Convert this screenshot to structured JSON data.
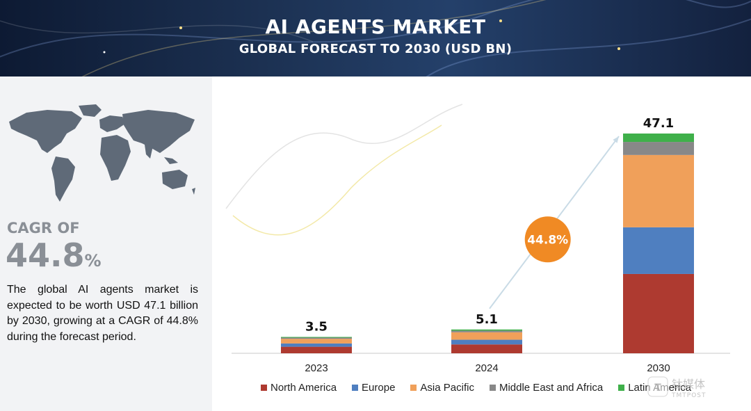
{
  "header": {
    "title": "AI AGENTS MARKET",
    "subtitle": "GLOBAL FORECAST TO 2030 (USD BN)"
  },
  "sidebar": {
    "cagr_label": "CAGR OF",
    "cagr_value": "44.8",
    "cagr_unit": "%",
    "description": "The global AI agents market is expected to be worth USD 47.1 billion by 2030, growing at a CAGR of 44.8% during the forecast period."
  },
  "chart_data": {
    "type": "bar",
    "stacked": true,
    "categories": [
      "2023",
      "2024",
      "2030"
    ],
    "totals": [
      "3.5",
      "5.1",
      "47.1"
    ],
    "series": [
      {
        "name": "North America",
        "color": "#ae3a30",
        "values": [
          1.4,
          1.9,
          17.0
        ]
      },
      {
        "name": "Europe",
        "color": "#4f7fc0",
        "values": [
          0.7,
          1.0,
          10.0
        ]
      },
      {
        "name": "Asia Pacific",
        "color": "#f0a05a",
        "values": [
          1.0,
          1.6,
          15.5
        ]
      },
      {
        "name": "Middle East and Africa",
        "color": "#888888",
        "values": [
          0.25,
          0.35,
          2.8
        ]
      },
      {
        "name": "Latin America",
        "color": "#3fb04a",
        "values": [
          0.15,
          0.25,
          1.8
        ]
      }
    ],
    "cagr_callout": "44.8%",
    "callout_color": "#f08a24",
    "ylim": [
      0,
      47.1
    ],
    "legend_position": "bottom"
  },
  "watermark": {
    "text_cn": "钛媒体",
    "text_en": "TMTPOST"
  },
  "colors": {
    "header_bg": "#1c3152",
    "panel_bg": "#f2f3f5",
    "muted_text": "#8a8f96"
  }
}
